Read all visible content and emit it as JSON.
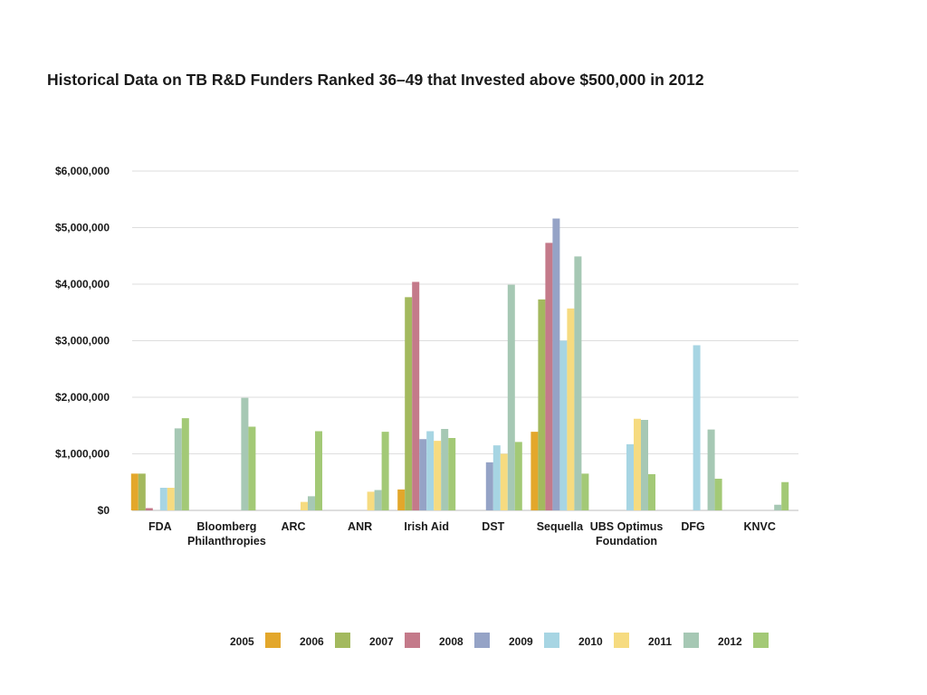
{
  "title": "Historical Data on TB R&D Funders Ranked 36–49 that Invested above $500,000 in 2012",
  "chart_data": {
    "type": "bar",
    "title": "Historical Data on TB R&D Funders Ranked 36–49 that Invested above $500,000 in 2012",
    "xlabel": "",
    "ylabel": "",
    "ylim": [
      0,
      6000000
    ],
    "y_ticks": [
      "$0",
      "$1,000,000",
      "$2,000,000",
      "$3,000,000",
      "$4,000,000",
      "$5,000,000",
      "$6,000,000"
    ],
    "grid": true,
    "legend_position": "bottom",
    "categories": [
      "FDA",
      "Bloomberg Philanthropies",
      "ARC",
      "ANR",
      "Irish Aid",
      "DST",
      "Sequella",
      "UBS Optimus Foundation",
      "DFG",
      "KNVC"
    ],
    "series": [
      {
        "name": "2005",
        "color": "#e3a72b",
        "values": [
          650000,
          0,
          0,
          0,
          370000,
          0,
          1390000,
          0,
          0,
          0
        ]
      },
      {
        "name": "2006",
        "color": "#a3b95e",
        "values": [
          650000,
          0,
          0,
          0,
          3770000,
          0,
          3730000,
          0,
          0,
          0
        ]
      },
      {
        "name": "2007",
        "color": "#c47a8a",
        "values": [
          40000,
          0,
          0,
          0,
          4040000,
          0,
          4730000,
          0,
          0,
          0
        ]
      },
      {
        "name": "2008",
        "color": "#95a3c6",
        "values": [
          0,
          0,
          0,
          0,
          1260000,
          850000,
          5160000,
          0,
          0,
          0
        ]
      },
      {
        "name": "2009",
        "color": "#a7d5e3",
        "values": [
          400000,
          0,
          0,
          0,
          1400000,
          1150000,
          3000000,
          1170000,
          2920000,
          0
        ]
      },
      {
        "name": "2010",
        "color": "#f6db80",
        "values": [
          400000,
          0,
          150000,
          330000,
          1230000,
          1000000,
          3570000,
          1620000,
          0,
          0
        ]
      },
      {
        "name": "2011",
        "color": "#a6c8b4",
        "values": [
          1450000,
          1990000,
          250000,
          360000,
          1440000,
          3990000,
          4490000,
          1600000,
          1430000,
          100000
        ]
      },
      {
        "name": "2012",
        "color": "#a3c976",
        "values": [
          1630000,
          1480000,
          1400000,
          1390000,
          1280000,
          1210000,
          650000,
          640000,
          560000,
          500000
        ]
      }
    ]
  },
  "legend": [
    {
      "label": "2005",
      "color": "#e3a72b"
    },
    {
      "label": "2006",
      "color": "#a3b95e"
    },
    {
      "label": "2007",
      "color": "#c47a8a"
    },
    {
      "label": "2008",
      "color": "#95a3c6"
    },
    {
      "label": "2009",
      "color": "#a7d5e3"
    },
    {
      "label": "2010",
      "color": "#f6db80"
    },
    {
      "label": "2011",
      "color": "#a6c8b4"
    },
    {
      "label": "2012",
      "color": "#a3c976"
    }
  ]
}
